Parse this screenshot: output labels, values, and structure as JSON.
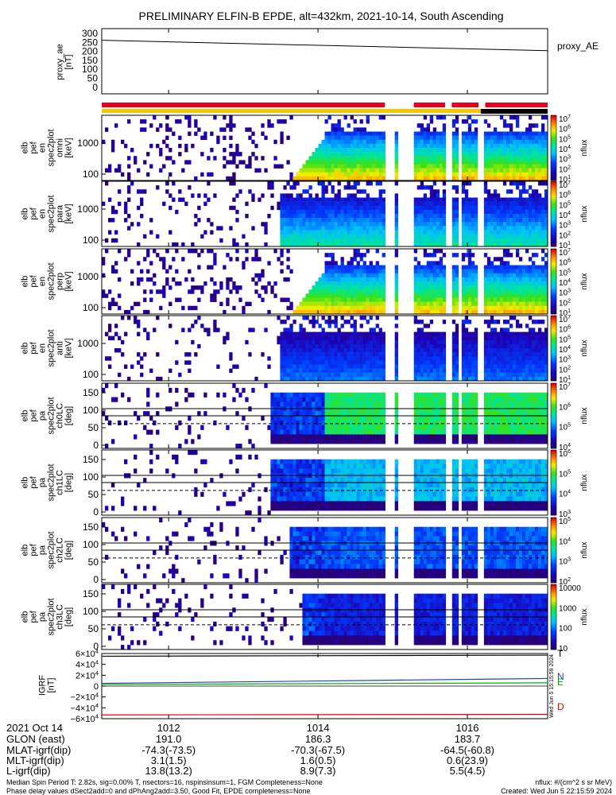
{
  "title": "PRELIMINARY ELFIN-B EPDE, alt=432km, 2021-10-14, South Ascending",
  "colors": {
    "panel_bg": "#ffffff",
    "segment_red": "#e8001c",
    "segment_yellow": "#f6c600",
    "segment_black": "#000000",
    "igrf_n": "#2040c0",
    "igrf_e": "#00b000",
    "igrf_d": "#e00000"
  },
  "chart_data": {
    "type": "heatmap",
    "x_range": [
      "10:11",
      "10:17"
    ],
    "x_ticks": [
      "1012",
      "1014",
      "1016"
    ],
    "proxy_ae": {
      "ylabel": [
        "proxy_ae",
        "[nT]"
      ],
      "yticks": [
        "300",
        "250",
        "200",
        "150",
        "100",
        "50",
        "0"
      ],
      "ylim": [
        0,
        300
      ],
      "legend": "proxy_AE",
      "x": [
        0,
        1
      ],
      "y": [
        262,
        204
      ]
    },
    "state_segments": [
      {
        "color": "red",
        "t": [
          0.0,
          0.635
        ]
      },
      {
        "color": "yellow",
        "t": [
          0.0,
          1.0
        ]
      },
      {
        "color": "red",
        "t": [
          0.7,
          0.77
        ]
      },
      {
        "color": "red",
        "t": [
          0.785,
          0.845
        ]
      },
      {
        "color": "red",
        "t": [
          0.86,
          1.0
        ]
      },
      {
        "color": "black",
        "t": [
          0.85,
          1.0
        ]
      }
    ],
    "panels": [
      {
        "id": "en-all",
        "ylabel": [
          "elb",
          "pef",
          "en",
          "spec2plot",
          "omni",
          "[keV]"
        ],
        "yticks": [
          "1000",
          "100"
        ],
        "kind": "energy",
        "cbar_ticks": [
          "10^7",
          "10^6",
          "10^5",
          "10^4",
          "10^3",
          "10^2",
          "10^1"
        ],
        "cbar_label": "nflux",
        "onset": 0.43,
        "onset_shape": "ramp",
        "intensity": 0.85,
        "noise": 0.18
      },
      {
        "id": "en-para",
        "ylabel": [
          "elb",
          "pef",
          "en",
          "spec2plot",
          "para",
          "[keV]"
        ],
        "yticks": [
          "1000",
          "100"
        ],
        "kind": "energy",
        "cbar_ticks": [
          "10^7",
          "10^6",
          "10^5",
          "10^4",
          "10^3",
          "10^2",
          "10^1"
        ],
        "cbar_label": "nflux",
        "onset": 0.4,
        "onset_shape": "step",
        "intensity": 0.55,
        "noise": 0.12
      },
      {
        "id": "en-perp",
        "ylabel": [
          "elb",
          "pef",
          "en",
          "spec2plot",
          "perp",
          "[keV]"
        ],
        "yticks": [
          "1000",
          "100"
        ],
        "kind": "energy",
        "cbar_ticks": [
          "10^7",
          "10^6",
          "10^5",
          "10^4",
          "10^3",
          "10^2",
          "10^1"
        ],
        "cbar_label": "nflux",
        "onset": 0.43,
        "onset_shape": "ramp",
        "intensity": 0.85,
        "noise": 0.18
      },
      {
        "id": "en-anti",
        "ylabel": [
          "elb",
          "pef",
          "en",
          "spec2plot",
          "anti",
          "[keV]"
        ],
        "yticks": [
          "1000",
          "100"
        ],
        "kind": "energy",
        "cbar_ticks": [
          "10^7",
          "10^6",
          "10^5",
          "10^4",
          "10^3",
          "10^2",
          "10^1"
        ],
        "cbar_label": "nflux",
        "onset": 0.4,
        "onset_shape": "step",
        "intensity": 0.35,
        "noise": 0.1
      },
      {
        "id": "pa-ch0",
        "ylabel": [
          "elb",
          "pef",
          "pa",
          "spec2plot",
          "ch0LC",
          "[deg]"
        ],
        "yticks": [
          "150",
          "100",
          "50",
          "0"
        ],
        "kind": "pitch",
        "cbar_ticks": [
          "10^7",
          "10^6",
          "10^5",
          "10^4"
        ],
        "cbar_label": "nflux",
        "onset": 0.38,
        "onset_shape": "step",
        "intensity": 0.6,
        "noise": 0.08
      },
      {
        "id": "pa-ch1",
        "ylabel": [
          "elb",
          "pef",
          "pa",
          "spec2plot",
          "ch1LC",
          "[deg]"
        ],
        "yticks": [
          "150",
          "100",
          "50",
          "0"
        ],
        "kind": "pitch",
        "cbar_ticks": [
          "10^6",
          "10^5",
          "10^4",
          "10^3"
        ],
        "cbar_label": "nflux",
        "onset": 0.38,
        "onset_shape": "step",
        "intensity": 0.42,
        "noise": 0.08
      },
      {
        "id": "pa-ch2",
        "ylabel": [
          "elb",
          "pef",
          "pa",
          "spec2plot",
          "ch2LC",
          "[deg]"
        ],
        "yticks": [
          "150",
          "100",
          "50",
          "0"
        ],
        "kind": "pitch",
        "cbar_ticks": [
          "10^5",
          "10^4",
          "10^3",
          "10^2"
        ],
        "cbar_label": "nflux",
        "onset": 0.42,
        "onset_shape": "step",
        "intensity": 0.3,
        "noise": 0.08
      },
      {
        "id": "pa-ch3",
        "ylabel": [
          "elb",
          "pef",
          "pa",
          "spec2plot",
          "ch3LC",
          "[deg]"
        ],
        "yticks": [
          "150",
          "100",
          "50",
          "0"
        ],
        "kind": "pitch",
        "cbar_ticks": [
          "10000",
          "1000",
          "100",
          "10"
        ],
        "cbar_label": "nflux",
        "onset": 0.45,
        "onset_shape": "step",
        "intensity": 0.2,
        "noise": 0.1
      }
    ],
    "igrf": {
      "ylabel": [
        "IGRF",
        "[nT]"
      ],
      "yticks": [
        "6×10^4",
        "4×10^4",
        "2×10^4",
        "0",
        "−2×10^4",
        "−4×10^4",
        "−6×10^4"
      ],
      "ylim": [
        -60000,
        60000
      ],
      "series": [
        {
          "name": "T",
          "y0": 55000,
          "y1": 57000
        },
        {
          "name": "N",
          "y0": 5000,
          "y1": 14000
        },
        {
          "name": "E",
          "y0": 3000,
          "y1": 6000
        },
        {
          "name": "D",
          "y0": -53000,
          "y1": -52000
        }
      ],
      "side_stamp": "Wed Jun 5 15:15:59 2024"
    },
    "orbit_table": {
      "rows": [
        {
          "label": "2021 Oct 14",
          "v1": "1012",
          "v2": "1014",
          "v3": "1016"
        },
        {
          "label": "GLON (east)",
          "v1": "191.0",
          "v2": "186.3",
          "v3": "183.7"
        },
        {
          "label": "MLAT-igrf(dip)",
          "v1": "-74.3(-73.5)",
          "v2": "-70.3(-67.5)",
          "v3": "-64.5(-60.8)"
        },
        {
          "label": "MLT-igrf(dip)",
          "v1": "3.1(1.5)",
          "v2": "1.6(0.5)",
          "v3": "0.6(23.9)"
        },
        {
          "label": "L-igrf(dip)",
          "v1": "13.8(13.2)",
          "v2": "8.9(7.3)",
          "v3": "5.5(4.5)"
        }
      ]
    },
    "footer": {
      "line1": "Median Spin Period T: 2.82s, sig=0.00% T, nsectors=16, nspinsinsum=1, FGM Completeness=None",
      "line2": "Phase delay values dSect2add=0 and dPhAng2add=3.50, Good Fit, EPDE completeness=None",
      "units": "nflux: #/(cm^2 s sr MeV)",
      "created": "Created: Wed Jun  5 22:15:59 2024"
    }
  }
}
